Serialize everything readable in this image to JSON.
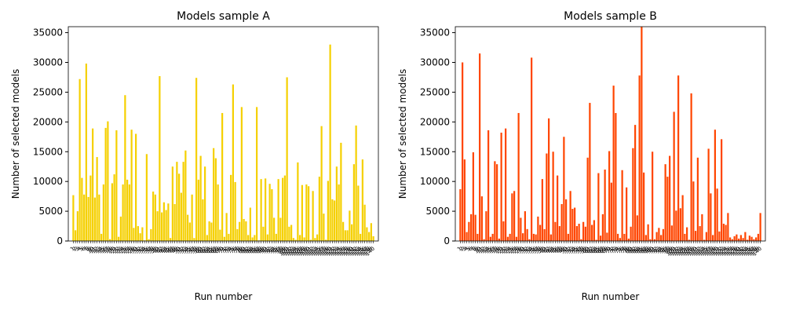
{
  "chart_data": [
    {
      "type": "bar",
      "title": "Models sample A",
      "x_label": "Run number",
      "y_label": "Number of selected models",
      "color": "#f5d000",
      "categories": [
        "1",
        "2",
        "3",
        "4",
        "5",
        "6",
        "7",
        "8",
        "9",
        "10",
        "11",
        "12",
        "13",
        "14",
        "15",
        "16",
        "17",
        "18",
        "19",
        "20",
        "21",
        "22",
        "23",
        "24",
        "25",
        "26",
        "27",
        "28",
        "29",
        "30",
        "31",
        "32",
        "33",
        "34",
        "35",
        "36",
        "37",
        "38",
        "39",
        "40",
        "41",
        "42",
        "43",
        "44",
        "45",
        "46",
        "47",
        "48",
        "49",
        "50",
        "51",
        "52",
        "53",
        "54",
        "55",
        "56",
        "57",
        "58",
        "59",
        "60",
        "61",
        "62",
        "63",
        "64",
        "65",
        "66",
        "67",
        "68",
        "69",
        "70",
        "71",
        "72",
        "73",
        "74",
        "75",
        "76",
        "77",
        "78",
        "79",
        "80",
        "81",
        "82",
        "83",
        "84",
        "85",
        "86",
        "87",
        "88",
        "89",
        "90",
        "91",
        "92",
        "93",
        "94",
        "95",
        "96",
        "97",
        "98",
        "99",
        "100",
        "101",
        "102",
        "103",
        "104",
        "105",
        "106",
        "107",
        "108",
        "109",
        "110",
        "111",
        "112",
        "113",
        "114",
        "115",
        "116",
        "117",
        "118",
        "119",
        "120",
        "121",
        "122",
        "123",
        "124",
        "125",
        "126",
        "127",
        "128",
        "129",
        "130",
        "131",
        "132",
        "133",
        "134",
        "135",
        "136",
        "137",
        "138",
        "139",
        "140"
      ],
      "values": [
        7700,
        1800,
        5000,
        27200,
        10600,
        7800,
        29800,
        7400,
        11000,
        18900,
        7300,
        14100,
        7800,
        1200,
        9500,
        19000,
        20100,
        300,
        9700,
        11200,
        18600,
        700,
        4100,
        9500,
        24500,
        10300,
        9500,
        18700,
        2200,
        18000,
        2500,
        1300,
        2300,
        100,
        14600,
        300,
        2000,
        8300,
        7800,
        5000,
        27700,
        4800,
        6500,
        5200,
        6300,
        500,
        12500,
        6200,
        13300,
        11300,
        8100,
        13300,
        15200,
        4400,
        3100,
        7800,
        500,
        27400,
        10300,
        14300,
        7000,
        12500,
        1000,
        3300,
        3100,
        15600,
        13900,
        9500,
        1900,
        21500,
        700,
        4700,
        1200,
        11100,
        26300,
        9900,
        2000,
        3200,
        22500,
        3700,
        3300,
        1000,
        5600,
        600,
        1000,
        22500,
        100,
        10400,
        2400,
        10500,
        1100,
        9600,
        8700,
        3900,
        1200,
        10400,
        3900,
        10600,
        11000,
        27500,
        2400,
        2700,
        500,
        200,
        13200,
        1000,
        9400,
        600,
        9500,
        9200,
        200,
        8400,
        500,
        1100,
        10800,
        19300,
        4600,
        200,
        10100,
        33000,
        7000,
        6800,
        12500,
        9500,
        16500,
        3200,
        1800,
        1800,
        5100,
        2800,
        12900,
        19400,
        9300,
        1200,
        13700,
        6100,
        2300,
        1500,
        3000,
        800
      ],
      "ylim": [
        0,
        36000
      ],
      "yticks": [
        0,
        5000,
        10000,
        15000,
        20000,
        25000,
        30000,
        35000
      ]
    },
    {
      "type": "bar",
      "title": "Models sample B",
      "x_label": "Run number",
      "y_label": "Number of selected models",
      "color": "#ff4500",
      "categories": [
        "1",
        "2",
        "3",
        "4",
        "5",
        "6",
        "7",
        "8",
        "9",
        "10",
        "11",
        "12",
        "13",
        "14",
        "15",
        "16",
        "17",
        "18",
        "19",
        "20",
        "21",
        "22",
        "23",
        "24",
        "25",
        "26",
        "27",
        "28",
        "29",
        "30",
        "31",
        "32",
        "33",
        "34",
        "35",
        "36",
        "37",
        "38",
        "39",
        "40",
        "41",
        "42",
        "43",
        "44",
        "45",
        "46",
        "47",
        "48",
        "49",
        "50",
        "51",
        "52",
        "53",
        "54",
        "55",
        "56",
        "57",
        "58",
        "59",
        "60",
        "61",
        "62",
        "63",
        "64",
        "65",
        "66",
        "67",
        "68",
        "69",
        "70",
        "71",
        "72",
        "73",
        "74",
        "75",
        "76",
        "77",
        "78",
        "79",
        "80",
        "81",
        "82",
        "83",
        "84",
        "85",
        "86",
        "87",
        "88",
        "89",
        "90",
        "91",
        "92",
        "93",
        "94",
        "95",
        "96",
        "97",
        "98",
        "99",
        "100",
        "101",
        "102",
        "103",
        "104",
        "105",
        "106",
        "107",
        "108",
        "109",
        "110",
        "111",
        "112",
        "113",
        "114",
        "115",
        "116",
        "117",
        "118",
        "119",
        "120",
        "121",
        "122",
        "123",
        "124",
        "125",
        "126",
        "127",
        "128",
        "129",
        "130",
        "131",
        "132",
        "133",
        "134",
        "135",
        "136",
        "137",
        "138",
        "139",
        "140"
      ],
      "values": [
        8700,
        30000,
        13700,
        1500,
        3200,
        4500,
        14900,
        4400,
        1200,
        31500,
        7500,
        300,
        5000,
        18600,
        700,
        1200,
        13400,
        12900,
        400,
        18200,
        3300,
        18900,
        700,
        1200,
        8000,
        8400,
        700,
        21500,
        3900,
        1300,
        5000,
        2000,
        300,
        30800,
        1200,
        1100,
        4100,
        2700,
        10400,
        2000,
        14700,
        20600,
        1100,
        15000,
        3200,
        11000,
        2500,
        6200,
        17500,
        7000,
        1200,
        8400,
        5400,
        5600,
        2500,
        2900,
        300,
        3200,
        2400,
        14000,
        23200,
        2700,
        3500,
        200,
        11400,
        900,
        4500,
        12000,
        1400,
        15100,
        9800,
        26100,
        21500,
        1200,
        500,
        11900,
        1200,
        9000,
        400,
        2400,
        15600,
        19500,
        4300,
        27800,
        36000,
        11500,
        1000,
        2800,
        300,
        15000,
        300,
        1500,
        2200,
        1000,
        2000,
        12900,
        10800,
        14300,
        2600,
        21700,
        5100,
        27800,
        5500,
        7700,
        1200,
        2300,
        200,
        24800,
        10000,
        1700,
        14000,
        2500,
        4500,
        200,
        1500,
        15500,
        8000,
        1000,
        18700,
        8800,
        1600,
        17100,
        2900,
        2700,
        4700,
        600,
        300,
        800,
        1100,
        400,
        1000,
        500,
        1500,
        200,
        900,
        700,
        300,
        600,
        1200,
        4700
      ],
      "ylim": [
        0,
        36000
      ],
      "yticks": [
        0,
        5000,
        10000,
        15000,
        20000,
        25000,
        30000,
        35000
      ]
    }
  ]
}
